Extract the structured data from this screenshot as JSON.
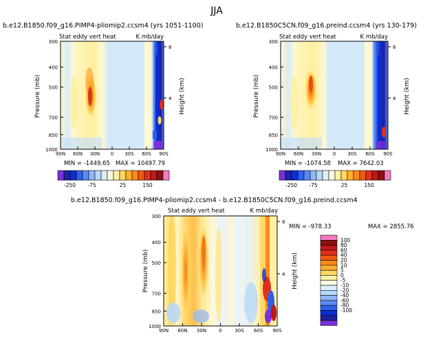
{
  "page_title": "JJA",
  "chart_data": [
    {
      "type": "heatmap",
      "title": "b.e12.B1850.f09_g16.PIMP4-pliomip2.ccsm4 (yrs 1051-1100)",
      "subtitle_left": "Stat eddy vert heat",
      "subtitle_right": "K mb/day",
      "ylabel": "Pressure (mb)",
      "ylabel_right": "Height (km)",
      "x_ticks": [
        "90N",
        "60N",
        "30N",
        "0",
        "30S",
        "60S",
        "90S"
      ],
      "y_ticks": [
        "300",
        "400",
        "500",
        "700",
        "850",
        "1000"
      ],
      "y_right_ticks": [
        "8",
        "4"
      ],
      "min_label": "MIN = -1449.65",
      "max_label": "MAX = 10497.79",
      "colorbar": {
        "orientation": "horizontal",
        "tick_labels": [
          "-250",
          "-75",
          "25",
          "150"
        ],
        "colors": [
          "#7B2FD9",
          "#2020A0",
          "#0A2FD0",
          "#2D5FE8",
          "#5A8AF5",
          "#8FB6F8",
          "#B8D8F9",
          "#DDEEFB",
          "#FFFDE0",
          "#FFF1A8",
          "#FFD862",
          "#FFB030",
          "#FF8A18",
          "#F05A10",
          "#E0301C",
          "#C01818",
          "#8C1010",
          "#F27BC3"
        ]
      }
    },
    {
      "type": "heatmap",
      "title": "b.e12.B1850C5CN.f09_g16.preind.ccsm4 (yrs 130-179)",
      "subtitle_left": "Stat eddy vert heat",
      "subtitle_right": "K mb/day",
      "ylabel": "Pressure (mb)",
      "ylabel_right": "Height (km)",
      "x_ticks": [
        "90N",
        "60N",
        "30N",
        "0",
        "30S",
        "60S",
        "90S"
      ],
      "y_ticks": [
        "300",
        "400",
        "500",
        "700",
        "850",
        "1000"
      ],
      "y_right_ticks": [
        "8",
        "4"
      ],
      "min_label": "MIN = -1074.58",
      "max_label": "MAX = 7642.03",
      "colorbar": {
        "orientation": "horizontal",
        "tick_labels": [
          "-250",
          "-75",
          "25",
          "150"
        ],
        "colors": [
          "#7B2FD9",
          "#2020A0",
          "#0A2FD0",
          "#2D5FE8",
          "#5A8AF5",
          "#8FB6F8",
          "#B8D8F9",
          "#DDEEFB",
          "#FFFDE0",
          "#FFF1A8",
          "#FFD862",
          "#FFB030",
          "#FF8A18",
          "#F05A10",
          "#E0301C",
          "#C01818",
          "#8C1010",
          "#F27BC3"
        ]
      }
    },
    {
      "type": "heatmap",
      "title": "b.e12.B1850.f09_g16.PIMP4-pliomip2.ccsm4 - b.e12.B1850C5CN.f09_g16.preind.ccsm4",
      "subtitle_left": "Stat eddy vert heat",
      "subtitle_right": "K mb/day",
      "ylabel": "Pressure (mb)",
      "ylabel_right": "Height (km)",
      "x_ticks": [
        "90N",
        "60N",
        "30N",
        "0",
        "30S",
        "60S",
        "90S"
      ],
      "y_ticks": [
        "300",
        "400",
        "500",
        "700",
        "850",
        "1000"
      ],
      "y_right_ticks": [
        "8",
        "4"
      ],
      "min_label": "MIN = -978.33",
      "max_label": "MAX = 2855.76",
      "colorbar": {
        "orientation": "vertical",
        "tick_labels": [
          "100",
          "80",
          "60",
          "40",
          "20",
          "10",
          "5",
          "0",
          "-5",
          "-10",
          "-20",
          "-40",
          "-60",
          "-80",
          "-100"
        ],
        "colors": [
          "#F27BC3",
          "#8C1010",
          "#C01818",
          "#E0301C",
          "#F05A10",
          "#FF8A18",
          "#FFB030",
          "#FFD862",
          "#FFF1A8",
          "#FFFDE0",
          "#DDEEFB",
          "#B8D8F9",
          "#8FB6F8",
          "#5A8AF5",
          "#2D5FE8",
          "#0A2FD0",
          "#2020A0",
          "#7B2FD9"
        ]
      }
    }
  ]
}
